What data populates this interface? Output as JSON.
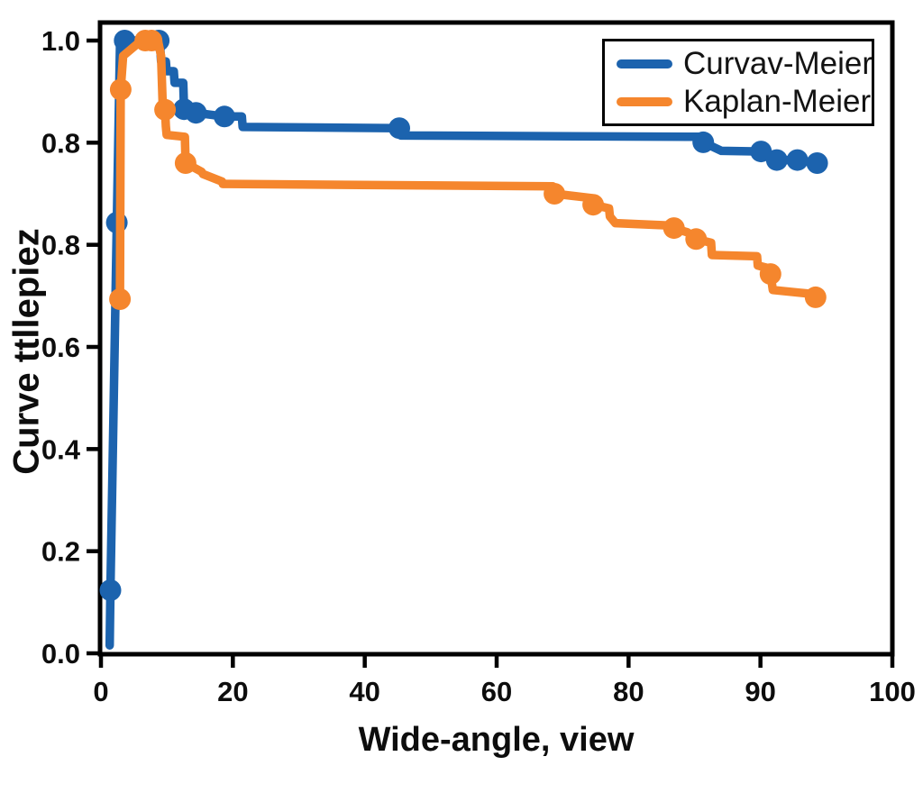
{
  "figure": {
    "background": "#ffffff",
    "axis_color": "#000000",
    "text_color": "#0d0d0d"
  },
  "chart_data": {
    "type": "line",
    "subtype": "kaplan-meier-step-curves",
    "title": "",
    "xlabel": "Wide-angle, view",
    "ylabel": "Curve ttllepiez",
    "xlim": [
      0,
      100
    ],
    "ylim": [
      0,
      1.03
    ],
    "grid": false,
    "legend_position": "upper-right",
    "x_tick_labels": [
      "0",
      "20",
      "40",
      "60",
      "80",
      "90",
      "100"
    ],
    "y_tick_labels": [
      "1.0",
      "0.8",
      "0.8",
      "0.6",
      "0.4",
      "0.2",
      "0.0"
    ],
    "point_format": "[x, y, has_marker]",
    "series": [
      {
        "name": "Curvav-Meier",
        "color": "#1c63ae",
        "marker": "circle",
        "points": [
          [
            1.1,
            0.013,
            0
          ],
          [
            1.2,
            0.103,
            1
          ],
          [
            2.0,
            0.703,
            1
          ],
          [
            2.4,
            0.99,
            0
          ],
          [
            3.0,
            1.0,
            1
          ],
          [
            7.3,
            1.0,
            1
          ],
          [
            7.5,
            0.988,
            0
          ],
          [
            7.6,
            0.966,
            0
          ],
          [
            8.2,
            0.966,
            0
          ],
          [
            8.3,
            0.95,
            0
          ],
          [
            9.2,
            0.95,
            0
          ],
          [
            9.3,
            0.931,
            0
          ],
          [
            10.4,
            0.931,
            0
          ],
          [
            10.5,
            0.888,
            1
          ],
          [
            12.0,
            0.882,
            1
          ],
          [
            15.6,
            0.876,
            1
          ],
          [
            17.8,
            0.876,
            0
          ],
          [
            17.9,
            0.859,
            0
          ],
          [
            37.7,
            0.857,
            1
          ],
          [
            37.9,
            0.845,
            0
          ],
          [
            75.8,
            0.843,
            0
          ],
          [
            76.1,
            0.834,
            1
          ],
          [
            78.4,
            0.82,
            0
          ],
          [
            83.4,
            0.819,
            1
          ],
          [
            85.4,
            0.805,
            1
          ],
          [
            88.0,
            0.805,
            1
          ],
          [
            90.5,
            0.8,
            1
          ]
        ]
      },
      {
        "name": "Kaplan-Meier",
        "color": "#f5862d",
        "marker": "circle",
        "points": [
          [
            2.4,
            0.578,
            1
          ],
          [
            2.5,
            0.92,
            1
          ],
          [
            2.8,
            0.975,
            0
          ],
          [
            5.1,
            1.0,
            0
          ],
          [
            5.6,
            1.0,
            1
          ],
          [
            6.4,
            1.0,
            1
          ],
          [
            7.2,
            1.0,
            0
          ],
          [
            7.6,
            0.975,
            0
          ],
          [
            7.8,
            0.895,
            0
          ],
          [
            8.1,
            0.887,
            1
          ],
          [
            8.2,
            0.86,
            0
          ],
          [
            8.3,
            0.846,
            0
          ],
          [
            10.6,
            0.843,
            0
          ],
          [
            10.7,
            0.8,
            1
          ],
          [
            12.7,
            0.786,
            0
          ],
          [
            12.9,
            0.782,
            0
          ],
          [
            15.3,
            0.77,
            0
          ],
          [
            15.4,
            0.766,
            0
          ],
          [
            57.1,
            0.762,
            0
          ],
          [
            57.3,
            0.75,
            1
          ],
          [
            62.0,
            0.743,
            0
          ],
          [
            62.2,
            0.732,
            1
          ],
          [
            64.2,
            0.726,
            0
          ],
          [
            64.3,
            0.713,
            0
          ],
          [
            65.0,
            0.702,
            0
          ],
          [
            72.2,
            0.698,
            0
          ],
          [
            72.4,
            0.694,
            1
          ],
          [
            74.1,
            0.687,
            0
          ],
          [
            75.2,
            0.676,
            1
          ],
          [
            77.1,
            0.67,
            0
          ],
          [
            77.2,
            0.65,
            0
          ],
          [
            82.9,
            0.648,
            0
          ],
          [
            83.0,
            0.633,
            0
          ],
          [
            84.5,
            0.628,
            0
          ],
          [
            84.6,
            0.619,
            1
          ],
          [
            84.9,
            0.593,
            0
          ],
          [
            90.2,
            0.586,
            0
          ],
          [
            90.3,
            0.581,
            1
          ]
        ]
      }
    ]
  }
}
